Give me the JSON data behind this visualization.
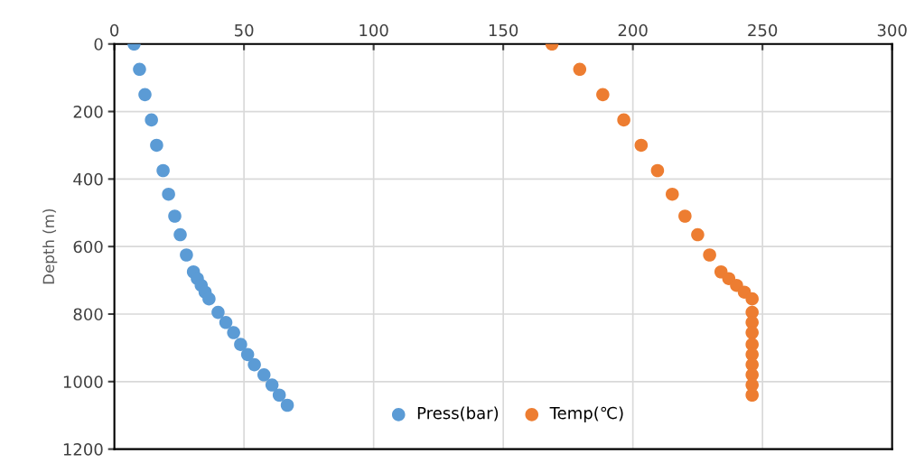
{
  "chart_data": {
    "type": "scatter",
    "ylabel": "Depth (m)",
    "xlim": [
      0,
      300
    ],
    "xticks": [
      0,
      50,
      100,
      150,
      200,
      250,
      300
    ],
    "ylim": [
      1200,
      0
    ],
    "yticks": [
      0,
      200,
      400,
      600,
      800,
      1000,
      1200
    ],
    "grid": true,
    "legend": "bottom",
    "marker": "circle",
    "series": [
      {
        "name": "Press(bar)",
        "color": "#5b9bd5",
        "x": [
          7.6,
          9.7,
          11.8,
          14.3,
          16.3,
          18.8,
          20.9,
          23.3,
          25.4,
          27.8,
          30.5,
          32,
          33.5,
          35,
          36.5,
          40,
          43,
          46,
          48.7,
          51.4,
          54,
          57.7,
          60.8,
          63.6,
          66.7
        ],
        "values": [
          0,
          75,
          150,
          225,
          300,
          375,
          445,
          510,
          565,
          625,
          675,
          695,
          715,
          735,
          755,
          795,
          825,
          855,
          890,
          920,
          950,
          980,
          1010,
          1040,
          1070
        ]
      },
      {
        "name": "Temp(℃)",
        "color": "#ed7d31",
        "x": [
          168.8,
          179.5,
          188.4,
          196.5,
          203.2,
          209.5,
          215.2,
          220.1,
          225,
          229.6,
          234,
          237,
          240,
          243,
          246,
          246,
          246,
          246,
          246,
          246,
          246,
          246,
          246,
          246
        ],
        "values": [
          0,
          75,
          150,
          225,
          300,
          375,
          445,
          510,
          565,
          625,
          675,
          695,
          715,
          735,
          755,
          795,
          825,
          855,
          890,
          920,
          950,
          980,
          1010,
          1040
        ]
      }
    ]
  }
}
